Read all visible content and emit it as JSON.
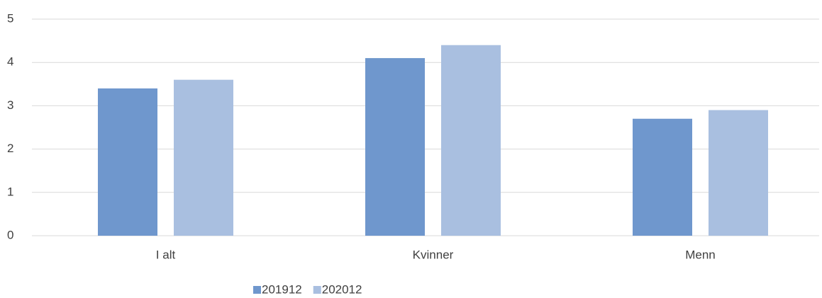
{
  "chart_data": {
    "type": "bar",
    "categories": [
      "I alt",
      "Kvinner",
      "Menn"
    ],
    "series": [
      {
        "name": "201912",
        "color": "#6f97cd",
        "values": [
          3.4,
          4.1,
          2.7
        ]
      },
      {
        "name": "202012",
        "color": "#a9bfe0",
        "values": [
          3.6,
          4.4,
          2.9
        ]
      }
    ],
    "ylim": [
      0,
      5
    ],
    "yticks": [
      0,
      1,
      2,
      3,
      4,
      5
    ],
    "grid": true,
    "legend": "bottom"
  }
}
